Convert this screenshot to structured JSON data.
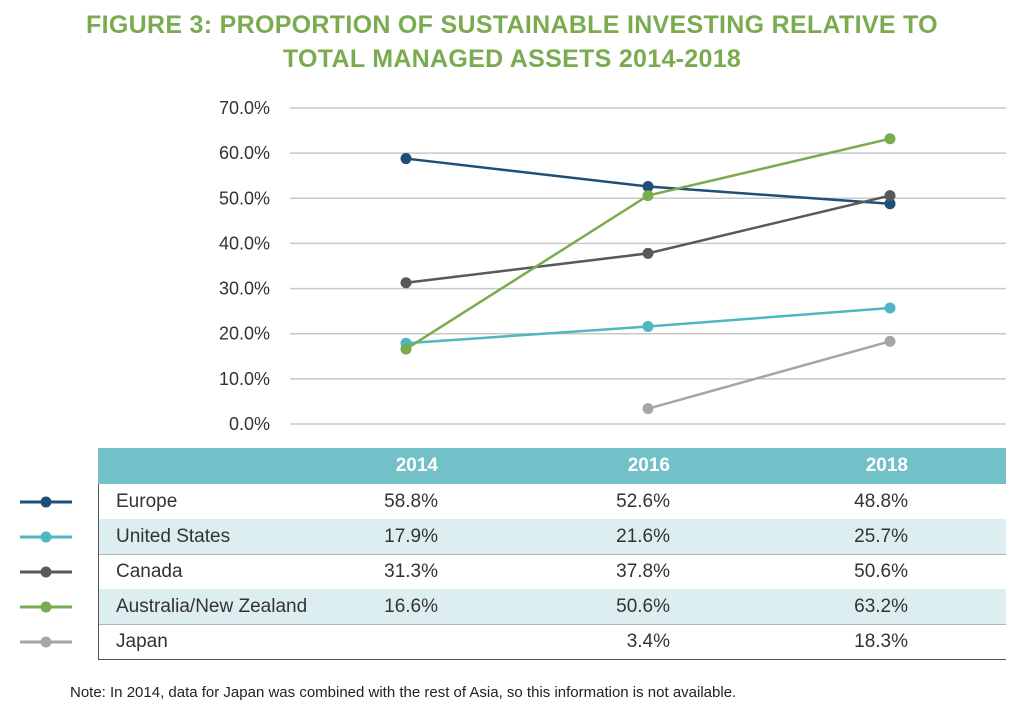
{
  "chart_data": {
    "type": "line",
    "title_lines": [
      "FIGURE 3: PROPORTION OF SUSTAINABLE INVESTING RELATIVE TO",
      "TOTAL MANAGED ASSETS 2014-2018"
    ],
    "categories": [
      "2014",
      "2016",
      "2018"
    ],
    "ylim": [
      0,
      70
    ],
    "yticks": [
      "0.0%",
      "10.0%",
      "20.0%",
      "30.0%",
      "40.0%",
      "50.0%",
      "60.0%",
      "70.0%"
    ],
    "grid": true,
    "series": [
      {
        "name": "Europe",
        "color": "#1f4e79",
        "values": [
          58.8,
          52.6,
          48.8
        ],
        "labels": [
          "58.8%",
          "52.6%",
          "48.8%"
        ]
      },
      {
        "name": "United States",
        "color": "#4db8c2",
        "values": [
          17.9,
          21.6,
          25.7
        ],
        "labels": [
          "17.9%",
          "21.6%",
          "25.7%"
        ]
      },
      {
        "name": "Canada",
        "color": "#595959",
        "values": [
          31.3,
          37.8,
          50.6
        ],
        "labels": [
          "31.3%",
          "37.8%",
          "50.6%"
        ]
      },
      {
        "name": "Australia/New Zealand",
        "color": "#7bab4f",
        "values": [
          16.6,
          50.6,
          63.2
        ],
        "labels": [
          "16.6%",
          "50.6%",
          "63.2%"
        ]
      },
      {
        "name": "Japan",
        "color": "#a6a6a6",
        "values": [
          null,
          3.4,
          18.3
        ],
        "labels": [
          "",
          "3.4%",
          "18.3%"
        ]
      }
    ],
    "note": "Note: In 2014, data for Japan was combined with the rest of Asia, so this information is not available."
  }
}
